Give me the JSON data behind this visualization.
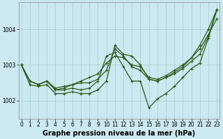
{
  "xlabel": "Graphe pression niveau de la mer (hPa)",
  "hours": [
    0,
    1,
    2,
    3,
    4,
    5,
    6,
    7,
    8,
    9,
    10,
    11,
    12,
    13,
    14,
    15,
    16,
    17,
    18,
    19,
    20,
    21,
    22,
    23
  ],
  "line1": [
    1003.0,
    1002.55,
    1002.45,
    1002.55,
    1002.35,
    1002.4,
    1002.45,
    1002.55,
    1002.65,
    1002.75,
    1003.05,
    1003.25,
    1003.2,
    1003.0,
    1002.95,
    1002.65,
    1002.6,
    1002.7,
    1002.85,
    1003.0,
    1003.2,
    1003.45,
    1003.85,
    1004.3
  ],
  "line2": [
    1003.0,
    1002.55,
    1002.45,
    1002.55,
    1002.3,
    1002.35,
    1002.45,
    1002.5,
    1002.5,
    1002.6,
    1002.85,
    1003.45,
    1003.25,
    1002.95,
    1002.85,
    1002.6,
    1002.55,
    1002.65,
    1002.8,
    1002.95,
    1003.2,
    1003.55,
    1004.0,
    1004.55
  ],
  "line3": [
    1003.0,
    1002.45,
    1002.4,
    1002.45,
    1002.2,
    1002.2,
    1002.25,
    1002.2,
    1002.2,
    1002.3,
    1002.55,
    1003.55,
    1003.3,
    1003.25,
    1003.0,
    1002.6,
    1002.55,
    1002.65,
    1002.75,
    1002.9,
    1003.1,
    1003.3,
    1003.8,
    1004.55
  ],
  "line4": [
    1003.0,
    1002.55,
    1002.45,
    1002.55,
    1002.3,
    1002.3,
    1002.35,
    1002.3,
    1002.35,
    1002.55,
    1003.25,
    1003.35,
    1002.95,
    1002.55,
    1002.55,
    1001.8,
    1002.05,
    1002.2,
    1002.4,
    1002.65,
    1002.9,
    1003.05,
    1003.75,
    1004.55
  ],
  "line_color": "#2d5a1b",
  "bg_color": "#cce8f0",
  "grid_color": "#aacccc",
  "ylim_min": 1001.5,
  "ylim_max": 1004.75,
  "ytick_vals": [
    1002.0,
    1003.0,
    1004.0
  ],
  "ytick_labels": [
    "1002",
    "1003",
    "1004"
  ],
  "marker": "+",
  "markersize": 3,
  "linewidth": 0.9,
  "xlabel_fontsize": 7,
  "tick_fontsize": 5.5
}
